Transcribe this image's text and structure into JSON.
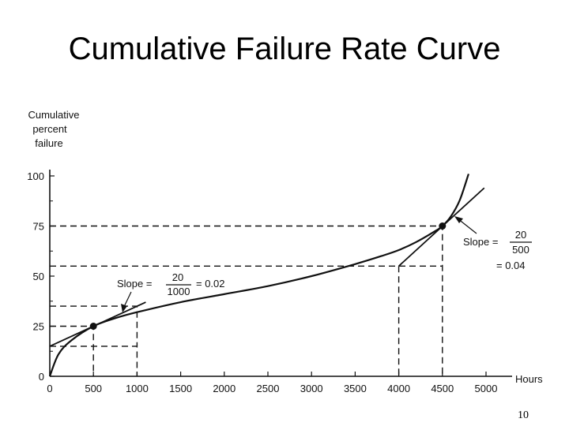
{
  "slide": {
    "title": "Cumulative Failure Rate Curve",
    "page_number": "10"
  },
  "chart_data": {
    "type": "line",
    "title": "",
    "ylabel": [
      "Cumulative",
      "percent",
      "failure"
    ],
    "xlabel": "Hours",
    "x_ticks": [
      "0",
      "500",
      "1000",
      "1500",
      "2000",
      "2500",
      "3000",
      "3500",
      "4000",
      "4500",
      "5000"
    ],
    "y_ticks": [
      "0",
      "25",
      "50",
      "75",
      "100"
    ],
    "xlim": [
      0,
      5000
    ],
    "ylim": [
      0,
      100
    ],
    "series": [
      {
        "x": [
          0,
          100,
          250,
          500,
          750,
          1000,
          1500,
          2000,
          2500,
          3000,
          3500,
          3800,
          4000,
          4200,
          4400,
          4500,
          4600,
          4700,
          4800
        ],
        "y": [
          0,
          11,
          18,
          25,
          29,
          32,
          37,
          41,
          45,
          50,
          56,
          60,
          63,
          67,
          72,
          75,
          80,
          88,
          101
        ]
      }
    ],
    "points": [
      {
        "x": 500,
        "y": 25
      },
      {
        "x": 4500,
        "y": 75
      }
    ],
    "tangents": [
      {
        "x": [
          0,
          1100
        ],
        "y": [
          15,
          37
        ]
      },
      {
        "x": [
          4000,
          4980
        ],
        "y": [
          55,
          94
        ]
      }
    ],
    "guides": [
      {
        "x": [
          0,
          500,
          500
        ],
        "y": [
          25,
          25,
          0
        ]
      },
      {
        "x": [
          0,
          1000,
          1000
        ],
        "y": [
          15,
          15,
          0
        ]
      },
      {
        "x": [
          0,
          1000,
          1000
        ],
        "y": [
          35,
          35,
          15
        ]
      },
      {
        "x": [
          0,
          4500,
          4500
        ],
        "y": [
          75,
          75,
          0
        ]
      },
      {
        "x": [
          0,
          4500
        ],
        "y": [
          55,
          55
        ]
      },
      {
        "x": [
          4000,
          4000
        ],
        "y": [
          55,
          0
        ]
      }
    ],
    "annotations": [
      {
        "prefix": "Slope =",
        "numerator": "20",
        "denominator": "1000",
        "suffix": "= 0.02"
      },
      {
        "prefix": "Slope =",
        "numerator": "20",
        "denominator": "500",
        "result": "= 0.04"
      }
    ]
  }
}
